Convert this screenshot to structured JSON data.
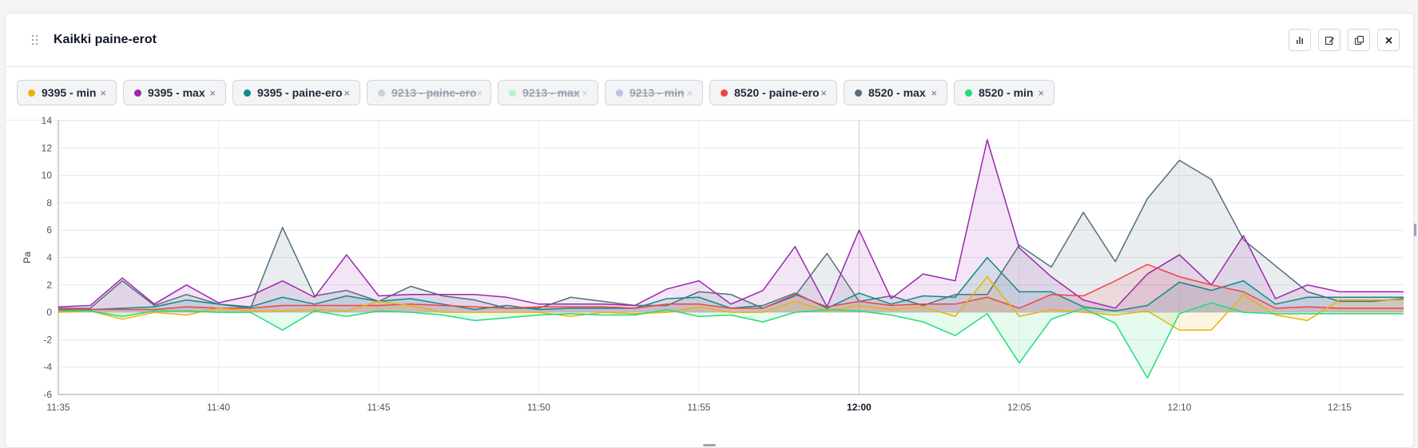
{
  "header": {
    "title": "Kaikki paine-erot",
    "buttons": [
      {
        "name": "chart-type-button",
        "icon": "bar-chart-icon"
      },
      {
        "name": "edit-button",
        "icon": "edit-icon"
      },
      {
        "name": "duplicate-button",
        "icon": "copy-icon"
      },
      {
        "name": "close-button",
        "icon": "close-icon"
      }
    ]
  },
  "legend": {
    "close_glyph": "×",
    "items": [
      {
        "label": "9395 - min",
        "color": "#eab308",
        "hidden": false
      },
      {
        "label": "9395 - max",
        "color": "#9c27b0",
        "hidden": false
      },
      {
        "label": "9395 - paine-ero",
        "color": "#0f8a8a",
        "hidden": false
      },
      {
        "label": "9213 - paine-ero",
        "color": "#a7b2bd",
        "hidden": true
      },
      {
        "label": "9213 - max",
        "color": "#86efac",
        "hidden": true
      },
      {
        "label": "9213 - min",
        "color": "#8b9fd8",
        "hidden": true
      },
      {
        "label": "8520 - paine-ero",
        "color": "#ef4444",
        "hidden": false
      },
      {
        "label": "8520 - max",
        "color": "#546e7a",
        "hidden": false
      },
      {
        "label": "8520 - min",
        "color": "#22dd77",
        "hidden": false
      }
    ]
  },
  "chart_data": {
    "type": "area",
    "xlabel": "",
    "ylabel": "Pa",
    "ylim": [
      -6,
      14
    ],
    "yticks": [
      14,
      12,
      10,
      8,
      6,
      4,
      2,
      0,
      -2,
      -4,
      -6
    ],
    "xlim": [
      "11:35",
      "12:17"
    ],
    "xticks": [
      "11:35",
      "11:40",
      "11:45",
      "11:50",
      "11:55",
      "12:00",
      "12:05",
      "12:10",
      "12:15"
    ],
    "xtick_bold": "12:00",
    "grid": true,
    "x": [
      "11:35",
      "11:36",
      "11:37",
      "11:38",
      "11:39",
      "11:40",
      "11:41",
      "11:42",
      "11:43",
      "11:44",
      "11:45",
      "11:46",
      "11:47",
      "11:48",
      "11:49",
      "11:50",
      "11:51",
      "11:52",
      "11:53",
      "11:54",
      "11:55",
      "11:56",
      "11:57",
      "11:58",
      "11:59",
      "12:00",
      "12:01",
      "12:02",
      "12:03",
      "12:04",
      "12:05",
      "12:06",
      "12:07",
      "12:08",
      "12:09",
      "12:10",
      "12:11",
      "12:12",
      "12:13",
      "12:14",
      "12:15",
      "12:16",
      "12:17"
    ],
    "series": [
      {
        "name": "8520 - max",
        "color": "#546e7a",
        "values": [
          0.3,
          0.3,
          2.3,
          0.5,
          1.3,
          0.6,
          0.3,
          6.2,
          1.2,
          1.6,
          0.8,
          1.9,
          1.2,
          0.9,
          0.3,
          0.3,
          1.1,
          0.8,
          0.5,
          0.5,
          1.5,
          1.3,
          0.3,
          1.2,
          4.3,
          0.8,
          1.2,
          0.5,
          1.3,
          1.3,
          4.9,
          3.3,
          7.3,
          3.7,
          8.3,
          11.1,
          9.7,
          5.3,
          3.4,
          1.5,
          0.8,
          0.8,
          1.0
        ]
      },
      {
        "name": "9395 - max",
        "color": "#9c27b0",
        "values": [
          0.4,
          0.5,
          2.5,
          0.6,
          2.0,
          0.7,
          1.2,
          2.3,
          1.1,
          4.2,
          1.2,
          1.3,
          1.3,
          1.3,
          1.1,
          0.6,
          0.6,
          0.6,
          0.5,
          1.7,
          2.3,
          0.6,
          1.6,
          4.8,
          0.4,
          6.0,
          1.0,
          2.8,
          2.3,
          12.6,
          4.7,
          2.6,
          0.9,
          0.3,
          2.8,
          4.2,
          2.0,
          5.6,
          1.0,
          2.0,
          1.5,
          1.5,
          1.5
        ]
      },
      {
        "name": "9395 - paine-ero",
        "color": "#0f8a8a",
        "values": [
          0.2,
          0.2,
          0.3,
          0.4,
          0.9,
          0.6,
          0.4,
          1.1,
          0.6,
          1.2,
          0.8,
          1.0,
          0.6,
          0.2,
          0.5,
          0.2,
          0.3,
          0.3,
          0.3,
          1.0,
          1.1,
          0.3,
          0.5,
          1.4,
          0.3,
          1.4,
          0.6,
          1.2,
          1.1,
          4.0,
          1.5,
          1.5,
          0.4,
          0.1,
          0.5,
          2.2,
          1.6,
          2.3,
          0.6,
          1.1,
          1.1,
          1.1,
          1.1
        ]
      },
      {
        "name": "8520 - paine-ero",
        "color": "#ef4444",
        "values": [
          0.2,
          0.2,
          0.2,
          0.2,
          0.4,
          0.3,
          0.3,
          0.5,
          0.5,
          0.5,
          0.5,
          0.6,
          0.5,
          0.4,
          0.3,
          0.4,
          0.4,
          0.4,
          0.3,
          0.6,
          0.6,
          0.3,
          0.3,
          1.3,
          0.4,
          0.8,
          0.5,
          0.6,
          0.6,
          1.1,
          0.3,
          1.3,
          1.2,
          2.3,
          3.5,
          2.6,
          2.0,
          1.5,
          0.3,
          0.4,
          0.3,
          0.3,
          0.3
        ]
      },
      {
        "name": "9395 - min",
        "color": "#eab308",
        "values": [
          0.0,
          0.1,
          -0.5,
          0.0,
          -0.2,
          0.3,
          0.1,
          0.1,
          0.2,
          0.1,
          0.8,
          0.5,
          0.0,
          0.0,
          0.0,
          0.0,
          -0.3,
          0.0,
          -0.1,
          0.0,
          0.4,
          0.0,
          0.0,
          0.8,
          0.1,
          0.5,
          0.2,
          0.4,
          -0.3,
          2.6,
          -0.3,
          0.2,
          0.0,
          -0.2,
          0.1,
          -1.3,
          -1.3,
          1.3,
          -0.2,
          -0.6,
          0.9,
          0.9,
          0.9
        ]
      },
      {
        "name": "8520 - min",
        "color": "#22dd77",
        "values": [
          0.1,
          0.1,
          -0.3,
          0.1,
          0.1,
          0.0,
          0.0,
          -1.3,
          0.1,
          -0.3,
          0.1,
          0.0,
          -0.2,
          -0.6,
          -0.4,
          -0.2,
          -0.1,
          -0.2,
          -0.2,
          0.2,
          -0.3,
          -0.2,
          -0.7,
          0.0,
          0.2,
          0.1,
          -0.2,
          -0.7,
          -1.7,
          -0.1,
          -3.7,
          -0.5,
          0.3,
          -0.8,
          -4.8,
          -0.1,
          0.7,
          0.0,
          -0.1,
          -0.1,
          -0.1,
          -0.1,
          -0.1
        ]
      }
    ]
  }
}
